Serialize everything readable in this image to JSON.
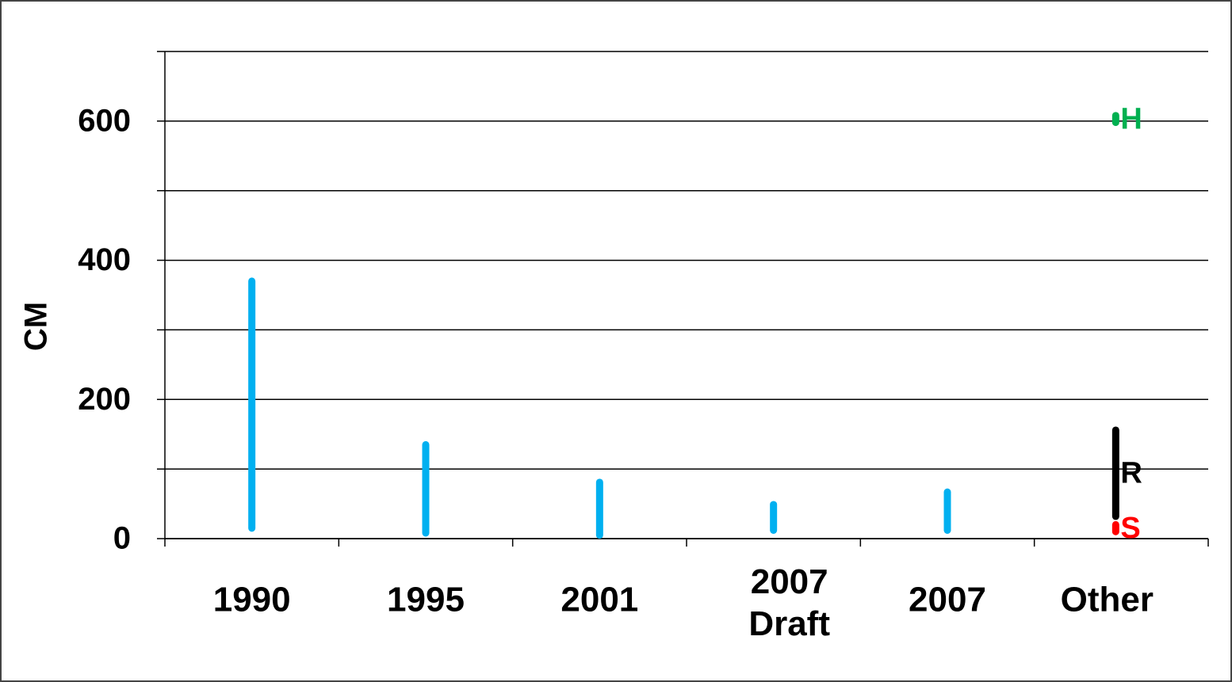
{
  "chart_data": {
    "type": "range",
    "y_label": "CM",
    "categories": [
      "1990",
      "1995",
      "2001",
      [
        "2007",
        "Draft"
      ],
      "2007",
      "Other"
    ],
    "low": [
      15,
      8,
      5,
      12,
      12,
      null
    ],
    "high": [
      370,
      135,
      81,
      49,
      67,
      null
    ],
    "color": "#00b0f0",
    "other_ranges": [
      {
        "label": "H",
        "color": "#00b050",
        "low": 598,
        "high": 608
      },
      {
        "label": "R",
        "color": "#000000",
        "low": 32,
        "high": 156
      },
      {
        "label": "S",
        "color": "#ff0000",
        "low": 10,
        "high": 20
      }
    ],
    "ylim": [
      0,
      700
    ],
    "yticks": [
      0,
      200,
      400,
      600
    ],
    "minor_yticks": [
      100,
      300,
      500,
      700
    ],
    "grid": true
  }
}
